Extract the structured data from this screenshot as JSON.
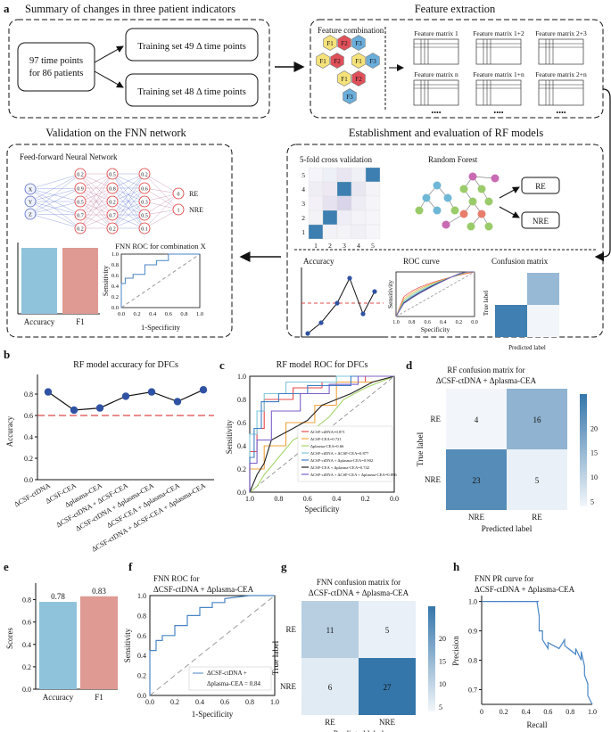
{
  "panel_letters": {
    "a": "a",
    "b": "b",
    "c": "c",
    "d": "d",
    "e": "e",
    "f": "f",
    "g": "g",
    "h": "h"
  },
  "workflow": {
    "summary_title": "Summary of changes in three patient indicators",
    "patients_line1": "97 time points",
    "patients_line2": "for 86 patients",
    "training_set_1": "Training set 49 Δ time points",
    "training_set_2": "Training set 48 Δ time points",
    "feature_extraction_title": "Feature extraction",
    "feature_combination_label": "Feature combination",
    "hex_labels": [
      "F1",
      "F2",
      "F3",
      "F1",
      "F2",
      "F1",
      "F3",
      "F1",
      "F2",
      "F3"
    ],
    "feature_matrices": [
      "Feature matrix 1",
      "Feature matrix 1+2",
      "Feature matrix 2+3",
      "Feature matrix n",
      "Feature matrix 1+n",
      "Feature matrix 2+n"
    ],
    "ellipsis": "••••",
    "fnn_section_title": "Validation on the FNN network",
    "fnn_label": "Feed-forward Neural Network",
    "input_nodes": [
      "X",
      "Y",
      "Z"
    ],
    "hidden1": [
      "0.2",
      "0.9",
      "0.5",
      "0.7",
      "0.2"
    ],
    "hidden2": [
      "0.5",
      "0.8",
      "0.2",
      "0.7",
      "0.2"
    ],
    "hidden3": [
      "0.2",
      "0.6",
      "0.3",
      "0.5",
      "0.1"
    ],
    "output_nodes": [
      "0",
      "1"
    ],
    "output_labels": [
      "RE",
      "NRE"
    ],
    "mini_bar_labels": [
      "Accuracy",
      "F1"
    ],
    "mini_roc_title": "FNN ROC for combination X",
    "mini_roc_ylabel": "Sensitivity",
    "mini_roc_xlabel": "1-Specificity",
    "mini_roc_ticks": [
      "0.0",
      "0.2",
      "0.4",
      "0.6",
      "0.8",
      "1.0"
    ],
    "rf_section_title": "Establishment and evaluation of RF models",
    "cv_label": "5-fold cross validation",
    "cv_ticks": [
      "1",
      "2",
      "3",
      "4",
      "5"
    ],
    "rf_label": "Random Forest",
    "rf_outputs": [
      "RE",
      "NRE"
    ],
    "accuracy_label": "Accuracy",
    "roc_label": "ROC curve",
    "roc_ylabel": "Sensitivity",
    "roc_xlabel": "Specificity",
    "roc_ticks": [
      "1.0",
      "0.8",
      "0.6",
      "0.4",
      "0.2",
      "0.0"
    ],
    "confusion_label": "Confusion matrix",
    "true_label": "True label",
    "pred_label": "Predicted label"
  },
  "chart_b": {
    "title": "RF model accuracy for DFCs",
    "ylabel": "Accuracy",
    "yticks": [
      "0.8",
      "0.6",
      "0.4",
      "0.2",
      "0.0"
    ],
    "categories": [
      "ΔCSF-ctDNA",
      "ΔCSF-CEA",
      "Δplasma-CEA",
      "ΔCSF-ctDNA + ΔCSF-CEA",
      "ΔCSF-ctDNA + Δplasma-CEA",
      "ΔCSF-CEA + Δplasma-CEA",
      "ΔCSF-ctDNA + ΔCSF-CEA + Δplasma-CEA"
    ],
    "values": [
      0.82,
      0.65,
      0.67,
      0.78,
      0.82,
      0.73,
      0.84
    ],
    "threshold": 0.6,
    "ylim": [
      0,
      0.9
    ]
  },
  "chart_c": {
    "title": "RF model ROC for DFCs",
    "ylabel": "Sensitivity",
    "xlabel": "Specificity",
    "yticks": [
      "1.0",
      "0.8",
      "0.6",
      "0.4",
      "0.2",
      "0.0"
    ],
    "xticks": [
      "1.0",
      "0.8",
      "0.6",
      "0.4",
      "0.2",
      "0.0"
    ],
    "legend": [
      {
        "label": "ΔCSF-ctDNA=0.871",
        "color": "#e8474a"
      },
      {
        "label": "ΔCSF-CEA=0.721",
        "color": "#f2a33a"
      },
      {
        "label": "Δplasma-CEA=0.66",
        "color": "#a5d46a"
      },
      {
        "label": "ΔCSF-ctDNA + ΔCSF-CEA=0.877",
        "color": "#7ec8d8"
      },
      {
        "label": "ΔCSF-ctDNA + Δplasma-CEA=0.902",
        "color": "#3b7fc4"
      },
      {
        "label": "ΔCSF-CEA + Δplasma-CEA=0.742",
        "color": "#222222"
      },
      {
        "label": "ΔCSF-ctDNA + ΔCSF-CEA + Δplasma-CEA=0.896",
        "color": "#7b5fc9"
      }
    ]
  },
  "chart_d": {
    "title1": "RF confusion matrix for",
    "title2": "ΔCSF-ctDNA + Δplasma-CEA",
    "rows": [
      "RE",
      "NRE"
    ],
    "cols": [
      "NRE",
      "RE"
    ],
    "values": [
      [
        4,
        16
      ],
      [
        23,
        5
      ]
    ],
    "ylabel": "True label",
    "xlabel": "Predicted label",
    "cbar_ticks": [
      "20",
      "15",
      "10",
      "5"
    ]
  },
  "chart_e": {
    "ylabel": "Scores",
    "yticks": [
      "0.8",
      "0.6",
      "0.4",
      "0.2",
      "0.0"
    ],
    "categories": [
      "Accuracy",
      "F1"
    ],
    "values": [
      0.78,
      0.83
    ],
    "value_labels": [
      "0.78",
      "0.83"
    ],
    "colors": [
      "#8fc3dc",
      "#de9a93"
    ]
  },
  "chart_f": {
    "title1": "FNN ROC for",
    "title2": "ΔCSF-ctDNA + Δplasma-CEA",
    "ylabel": "Sensitivity",
    "xlabel": "1-Specificity",
    "yticks": [
      "1.0",
      "0.8",
      "0.6",
      "0.4",
      "0.2",
      "0.0"
    ],
    "xticks": [
      "0.0",
      "0.2",
      "0.4",
      "0.6",
      "0.8",
      "1.0"
    ],
    "legend1": "ΔCSF-ctDNA +",
    "legend2": "Δplasma-CEA = 0.84",
    "fpr": [
      0,
      0,
      0.05,
      0.05,
      0.1,
      0.1,
      0.2,
      0.2,
      0.3,
      0.3,
      0.4,
      0.4,
      0.5,
      0.5,
      0.6,
      0.6,
      0.8,
      1.0
    ],
    "tpr": [
      0,
      0.45,
      0.45,
      0.55,
      0.55,
      0.6,
      0.6,
      0.7,
      0.7,
      0.8,
      0.8,
      0.88,
      0.88,
      0.93,
      0.93,
      0.97,
      1.0,
      1.0
    ]
  },
  "chart_g": {
    "title1": "FNN confusion matrix for",
    "title2": "ΔCSF-ctDNA + Δplasma-CEA",
    "rows": [
      "RE",
      "NRE"
    ],
    "cols": [
      "RE",
      "NRE"
    ],
    "values": [
      [
        11,
        5
      ],
      [
        6,
        27
      ]
    ],
    "ylabel": "True label",
    "xlabel": "Predicted label",
    "cbar_ticks": [
      "20",
      "15",
      "10",
      "5"
    ]
  },
  "chart_h": {
    "title1": "FNN PR curve for",
    "title2": "ΔCSF-ctDNA + Δplasma-CEA",
    "ylabel": "Precision",
    "xlabel": "Recall",
    "yticks": [
      "1.0",
      "0.9",
      "0.8",
      "0.7"
    ],
    "xticks": [
      "0",
      "0.2",
      "0.4",
      "0.6",
      "0.8",
      "1.0"
    ],
    "recall": [
      0,
      0.5,
      0.52,
      0.52,
      0.55,
      0.55,
      0.6,
      0.6,
      0.7,
      0.75,
      0.75,
      0.85,
      0.85,
      0.9,
      0.9,
      0.93,
      0.93,
      0.96,
      0.96,
      1.0
    ],
    "precision": [
      1.0,
      1.0,
      0.95,
      0.9,
      0.9,
      0.87,
      0.84,
      0.86,
      0.84,
      0.87,
      0.85,
      0.82,
      0.84,
      0.8,
      0.83,
      0.78,
      0.75,
      0.72,
      0.68,
      0.65
    ]
  }
}
